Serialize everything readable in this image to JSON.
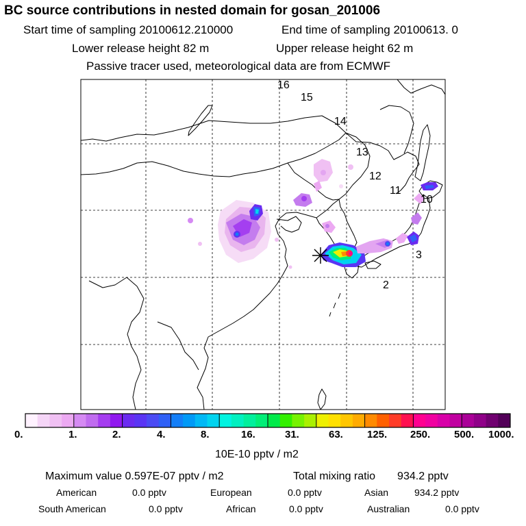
{
  "header": {
    "title": "BC  source contributions in nested domain for gosan_201006",
    "start_sampling": "Start time of sampling 20100612.210000",
    "end_sampling": "End time of sampling 20100613.     0",
    "lower_release": "Lower release height   82 m",
    "upper_release": "Upper release height   62 m",
    "tracer_note": "Passive tracer used, meteorological data are from ECMWF"
  },
  "map": {
    "hour_labels": [
      "16",
      "15",
      "14",
      "13",
      "12",
      "11",
      "10",
      "3",
      "2"
    ],
    "receptor_marker": "receptor-star"
  },
  "colorbar": {
    "colors": [
      "#fff2ff",
      "#f5d5f7",
      "#f0c0f3",
      "#eca9f2",
      "#d58af3",
      "#c06cef",
      "#a53df0",
      "#9018ef",
      "#6b2bf0",
      "#5a35f4",
      "#4b4bf4",
      "#2f60f6",
      "#137ef7",
      "#0099f6",
      "#00b8f5",
      "#00d3ef",
      "#00f3e0",
      "#00f0c0",
      "#00ef9c",
      "#00ee77",
      "#00ea4a",
      "#33f000",
      "#77f200",
      "#aaf000",
      "#eef000",
      "#ffe000",
      "#ffc600",
      "#ffab00",
      "#ff8a00",
      "#ff6000",
      "#ff3c28",
      "#ff1050",
      "#ff0090",
      "#f000a0",
      "#d800a8",
      "#c000a0",
      "#aa0098",
      "#8f0088",
      "#700070",
      "#520058"
    ],
    "tick_labels": [
      "0.",
      "1.",
      "2.",
      "4.",
      "8.",
      "16.",
      "31.",
      "63.",
      "125.",
      "250.",
      "500.",
      "1000."
    ],
    "unit": "10E-10 pptv / m2"
  },
  "stats": {
    "maximum_label": "Maximum value  0.597E-07 pptv / m2",
    "total_label": "Total mixing ratio",
    "total_value": "934.2 pptv",
    "regions": [
      {
        "name": "American",
        "value": "0.0 pptv"
      },
      {
        "name": "European",
        "value": "0.0 pptv"
      },
      {
        "name": "Asian",
        "value": "934.2 pptv"
      },
      {
        "name": "South American",
        "value": "0.0 pptv"
      },
      {
        "name": "African",
        "value": "0.0 pptv"
      },
      {
        "name": "Australian",
        "value": "0.0 pptv"
      }
    ]
  }
}
